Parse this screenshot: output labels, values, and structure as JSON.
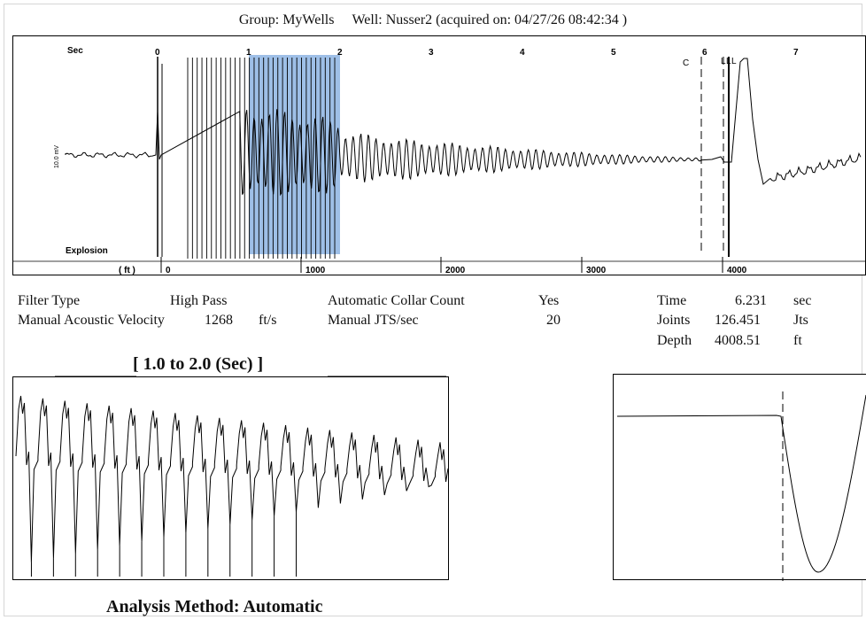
{
  "header": {
    "group": "Group: MyWells",
    "well": "Well: Nusser2 (acquired on: 04/27/26 08:42:34 )"
  },
  "main_plot": {
    "sec_label": "Sec",
    "sec_ticks": [
      "0",
      "1",
      "2",
      "3",
      "4",
      "5",
      "6",
      "7"
    ],
    "ft_label": "( ft )",
    "ft_ticks": [
      "0",
      "1000",
      "2000",
      "3000",
      "4000"
    ],
    "ylabel": "10.0 mV",
    "explosion_label": "Explosion",
    "c_marker": "C",
    "l_markers": "L L L",
    "highlight_color": "#8db4e3"
  },
  "chart_data": [
    {
      "type": "line",
      "title": "",
      "xlabel": "Sec",
      "ylabel": "10.0 mV",
      "xlim": [
        -1.05,
        7.75
      ],
      "secondary_x": {
        "label": "( ft )",
        "ticks": [
          0,
          1000,
          2000,
          3000,
          4000
        ]
      },
      "selection": {
        "from": 1.0,
        "to": 2.0,
        "color": "#8db4e3"
      },
      "markers": [
        {
          "label": "Explosion",
          "x": 0.0
        },
        {
          "label": "C",
          "x": 6.0
        },
        {
          "label": "L",
          "x": 6.25
        }
      ],
      "series": [
        {
          "description": "acoustic trace: flat, explosion spike at 0 s, saturated oscillation 0.3-1.9 s decaying to ~6 s, liquid level kick at ~6.2 s",
          "x": [
            -1.0,
            -0.5,
            0.0,
            0.05,
            0.3,
            1.0,
            1.5,
            2.0,
            3.0,
            4.0,
            5.0,
            6.0,
            6.2,
            6.5,
            7.0,
            7.7
          ],
          "y": [
            0,
            0,
            0,
            2,
            9,
            9,
            6,
            3,
            2,
            1.2,
            0.5,
            0,
            9,
            -2,
            -1,
            0
          ]
        }
      ]
    },
    {
      "type": "line",
      "title": "[ 1.0  to  2.0 (Sec) ]",
      "xlim": [
        1.0,
        2.0
      ],
      "series": [
        {
          "description": "zoomed collar reflections, ~20 cycles, detected collar markers",
          "cycles": 20,
          "collar_markers": 13
        }
      ]
    },
    {
      "type": "line",
      "title": "",
      "series": [
        {
          "description": "liquid level kick zoom: flat then deep trough after dashed marker"
        }
      ]
    }
  ],
  "info": {
    "filter_type_label": "Filter Type",
    "filter_type_value": "High Pass",
    "velocity_label": "Manual Acoustic Velocity",
    "velocity_value": "1268",
    "velocity_unit": "ft/s",
    "collar_count_label": "Automatic Collar Count",
    "collar_count_value": "Yes",
    "jts_label": "Manual JTS/sec",
    "jts_value": "20",
    "time_label": "Time",
    "time_value": "6.231",
    "time_unit": "sec",
    "joints_label": "Joints",
    "joints_value": "126.451",
    "joints_unit": "Jts",
    "depth_label": "Depth",
    "depth_value": "4008.51",
    "depth_unit": "ft"
  },
  "zoom_title": "[ 1.0  to  2.0 (Sec) ]",
  "footer": "Analysis Method:  Automatic"
}
